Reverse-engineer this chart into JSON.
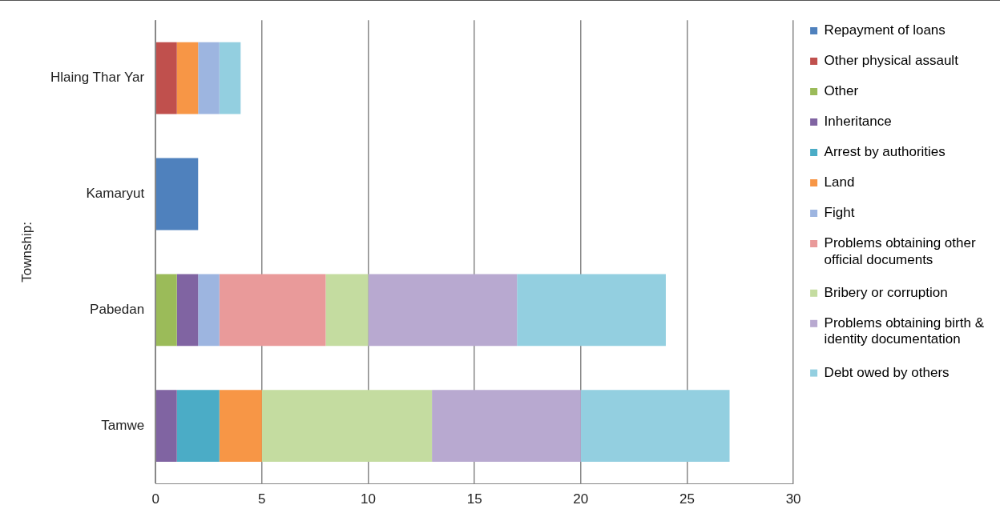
{
  "chart_data": {
    "type": "bar",
    "orientation": "horizontal",
    "stacked": true,
    "ylabel": "Township:",
    "categories": [
      "Hlaing Thar Yar",
      "Kamaryut",
      "Pabedan",
      "Tamwe"
    ],
    "xlim": [
      0,
      30
    ],
    "xticks": [
      0,
      5,
      10,
      15,
      20,
      25,
      30
    ],
    "grid": "x",
    "legend": "right",
    "series": [
      {
        "name": "Repayment of loans",
        "color": "#4f81bd",
        "values": [
          0,
          2,
          0,
          0
        ]
      },
      {
        "name": "Other physical assault",
        "color": "#c0504d",
        "values": [
          1,
          0,
          0,
          0
        ]
      },
      {
        "name": "Other",
        "color": "#9bbb59",
        "values": [
          0,
          0,
          1,
          0
        ]
      },
      {
        "name": "Inheritance",
        "color": "#8064a2",
        "values": [
          0,
          0,
          1,
          1
        ]
      },
      {
        "name": "Arrest by authorities",
        "color": "#4bacc6",
        "values": [
          0,
          0,
          0,
          2
        ]
      },
      {
        "name": "Land",
        "color": "#f79646",
        "values": [
          1,
          0,
          0,
          2
        ]
      },
      {
        "name": "Fight",
        "color": "#9db5e0",
        "values": [
          1,
          0,
          1,
          0
        ]
      },
      {
        "name": "Problems obtaining other official documents",
        "color": "#e99a9a",
        "values": [
          0,
          0,
          5,
          0
        ]
      },
      {
        "name": "Bribery or corruption",
        "color": "#c4dca0",
        "values": [
          0,
          0,
          2,
          8
        ]
      },
      {
        "name": "Problems obtaining birth & identity documentation",
        "color": "#b8a9d0",
        "values": [
          0,
          0,
          7,
          7
        ]
      },
      {
        "name": "Debt owed by others",
        "color": "#93cfe0",
        "values": [
          1,
          0,
          7,
          7
        ]
      }
    ]
  }
}
